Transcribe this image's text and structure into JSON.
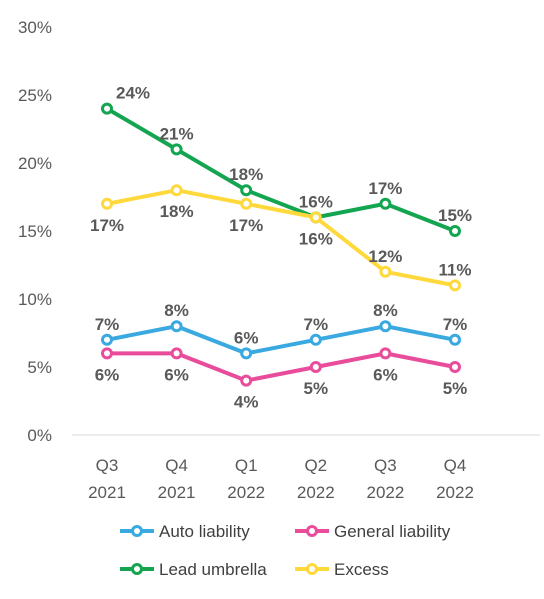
{
  "chart_data": {
    "type": "line",
    "categories": [
      "Q3 2021",
      "Q4 2021",
      "Q1 2022",
      "Q2 2022",
      "Q3 2022",
      "Q4 2022"
    ],
    "category_lines": [
      [
        "Q3",
        "2021"
      ],
      [
        "Q4",
        "2021"
      ],
      [
        "Q1",
        "2022"
      ],
      [
        "Q2",
        "2022"
      ],
      [
        "Q3",
        "2022"
      ],
      [
        "Q4",
        "2022"
      ]
    ],
    "yticks": [
      "0%",
      "5%",
      "10%",
      "15%",
      "20%",
      "25%",
      "30%"
    ],
    "ylim": [
      0,
      30
    ],
    "grid": false,
    "legend_position": "bottom",
    "series": [
      {
        "name": "Auto liability",
        "color": "#3AA9E0",
        "values": [
          7,
          8,
          6,
          7,
          8,
          7
        ],
        "labels": [
          "7%",
          "8%",
          "6%",
          "7%",
          "8%",
          "7%"
        ],
        "label_side": [
          "above",
          "above",
          "above",
          "above",
          "above",
          "above"
        ]
      },
      {
        "name": "General liability",
        "color": "#E84C9A",
        "values": [
          6,
          6,
          4,
          5,
          6,
          5
        ],
        "labels": [
          "6%",
          "6%",
          "4%",
          "5%",
          "6%",
          "5%"
        ],
        "label_side": [
          "below",
          "below",
          "below",
          "below",
          "below",
          "below"
        ]
      },
      {
        "name": "Lead umbrella",
        "color": "#14A550",
        "values": [
          24,
          21,
          18,
          16,
          17,
          15
        ],
        "labels": [
          "24%",
          "21%",
          "18%",
          "16%",
          "17%",
          "15%"
        ],
        "label_side": [
          "above",
          "above",
          "above",
          "above",
          "above",
          "above"
        ]
      },
      {
        "name": "Excess",
        "color": "#FFD93B",
        "values": [
          17,
          18,
          17,
          16,
          12,
          11
        ],
        "labels": [
          "17%",
          "18%",
          "17%",
          "16%",
          "12%",
          "11%"
        ],
        "label_side": [
          "below",
          "below",
          "below",
          "below",
          "above",
          "above"
        ]
      }
    ]
  }
}
